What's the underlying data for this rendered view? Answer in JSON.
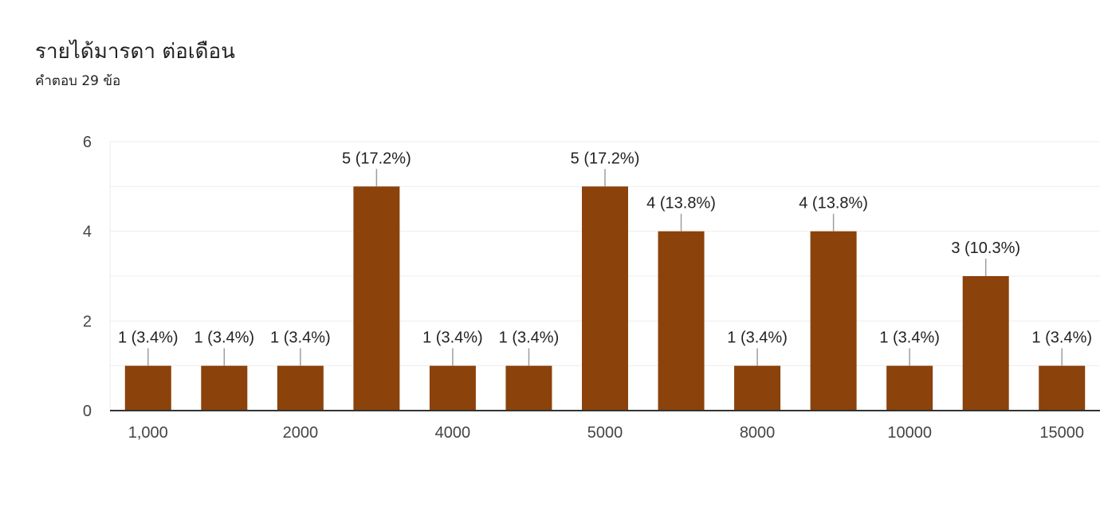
{
  "header": {
    "title": "รายได้มารดา  ต่อเดือน",
    "subtitle": "คำตอบ 29 ข้อ"
  },
  "colors": {
    "bar": "#8B420B",
    "grid": "#eeeeee",
    "axis": "#333333",
    "leader": "#9e9e9e"
  },
  "chart_data": {
    "type": "bar",
    "title": "รายได้มารดา  ต่อเดือน",
    "categories": [
      "1,000",
      "",
      "2000",
      "",
      "4000",
      "",
      "5000",
      "",
      "8000",
      "",
      "10000",
      "",
      "15000"
    ],
    "values": [
      1,
      1,
      1,
      5,
      1,
      1,
      5,
      4,
      1,
      4,
      1,
      3,
      1
    ],
    "data_labels": [
      "1 (3.4%)",
      "1 (3.4%)",
      "1 (3.4%)",
      "5 (17.2%)",
      "1 (3.4%)",
      "1 (3.4%)",
      "5 (17.2%)",
      "4 (13.8%)",
      "1 (3.4%)",
      "4 (13.8%)",
      "1 (3.4%)",
      "3 (10.3%)",
      "1 (3.4%)"
    ],
    "ylim": [
      0,
      6
    ],
    "yticks": [
      0,
      2,
      4,
      6
    ],
    "grid": true,
    "legend": "none",
    "xlabel": "",
    "ylabel": ""
  }
}
